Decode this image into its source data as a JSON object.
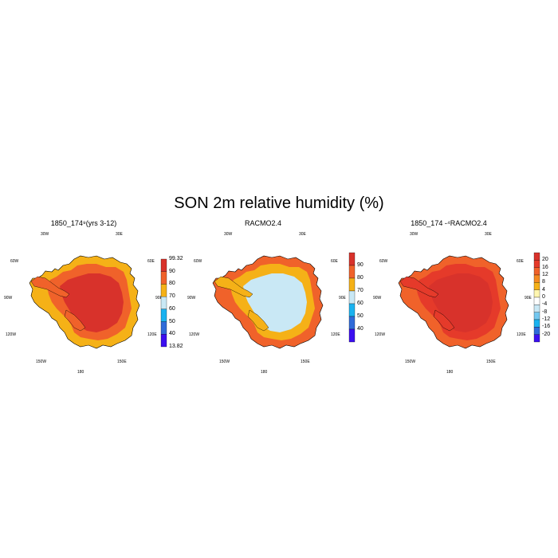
{
  "figure": {
    "title": "SON 2m relative humidity (%)"
  },
  "lon_labels": [
    "30W",
    "30E",
    "60W",
    "60E",
    "90W",
    "90E",
    "120W",
    "120E",
    "150W",
    "150E",
    "180"
  ],
  "panels": [
    {
      "title": "1850_174⁹(yrs 3-12)",
      "colorbar": {
        "colors": [
          "#3b0ff0",
          "#2f6bd9",
          "#1ab2f0",
          "#c9e8f5",
          "#f5b117",
          "#f0622a",
          "#d8322b"
        ],
        "labels": [
          "99.32",
          "90",
          "80",
          "70",
          "60",
          "50",
          "40",
          "13.82"
        ]
      },
      "interior_color": "#d8322b",
      "coast_color": "#f0622a",
      "edge_color": "#f5b117"
    },
    {
      "title": "RACMO2.4",
      "colorbar": {
        "colors": [
          "#3b0ff0",
          "#2f6bd9",
          "#1ab2f0",
          "#c9e8f5",
          "#f5b117",
          "#f0622a",
          "#d8322b"
        ],
        "labels": [
          "90",
          "80",
          "70",
          "60",
          "50",
          "40"
        ]
      },
      "interior_color": "#c9e8f5",
      "coast_color": "#f5b117",
      "edge_color": "#f0622a"
    },
    {
      "title": "1850_174 -⁴RACMO2.4",
      "colorbar": {
        "colors": [
          "#3b0ff0",
          "#2f6bd9",
          "#1ab2f0",
          "#73c8f0",
          "#c9e8f5",
          "#ffffff",
          "#fff6b0",
          "#f5b117",
          "#f58a21",
          "#f0622a",
          "#e53a2a",
          "#d8322b"
        ],
        "labels": [
          "20",
          "16",
          "12",
          "8",
          "4",
          "0",
          "-4",
          "-8",
          "-12",
          "-16",
          "-20"
        ]
      },
      "interior_color": "#d8322b",
      "coast_color": "#e53a2a",
      "edge_color": "#f0622a"
    }
  ]
}
